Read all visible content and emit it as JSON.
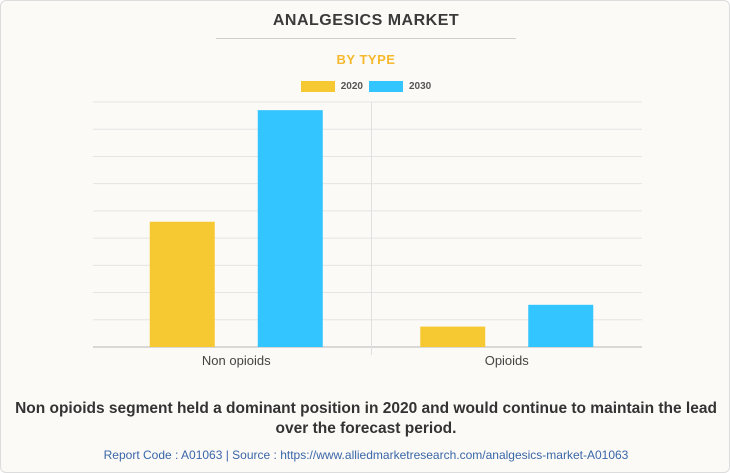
{
  "chart_data": {
    "type": "bar",
    "title": "ANALGESICS MARKET",
    "subtitle": "BY TYPE",
    "categories": [
      "Non opioids",
      "Opioids"
    ],
    "series": [
      {
        "name": "2020",
        "color": "#f6c832",
        "values": [
          46,
          7.5
        ]
      },
      {
        "name": "2030",
        "color": "#32c5ff",
        "values": [
          87,
          15.5
        ]
      }
    ],
    "ylim": [
      0,
      90
    ],
    "grid": true,
    "legend_position": "top-center"
  },
  "caption": "Non opioids segment held a dominant position in 2020 and would continue to maintain the lead over the forecast period.",
  "footer": "Report Code : A01063  |  Source : https://www.alliedmarketresearch.com/analgesics-market-A01063"
}
